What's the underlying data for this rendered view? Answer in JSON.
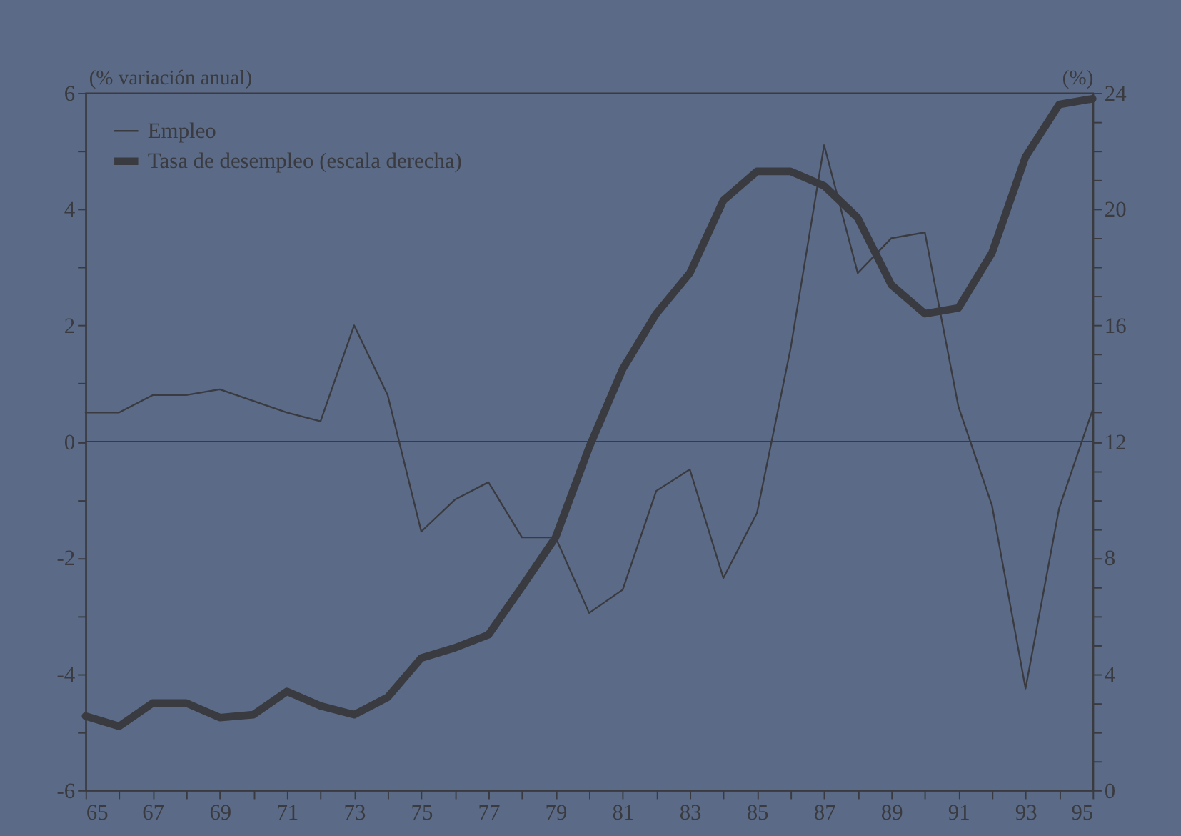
{
  "chart_data": {
    "type": "line",
    "ylabel": "(% variación anual)",
    "y2label": "(%)",
    "x": [
      65,
      66,
      67,
      68,
      69,
      70,
      71,
      72,
      73,
      74,
      75,
      76,
      77,
      78,
      79,
      80,
      81,
      82,
      83,
      84,
      85,
      86,
      87,
      88,
      89,
      90,
      91,
      92,
      93,
      94,
      95
    ],
    "series": [
      {
        "name": "Empleo",
        "color": "#3a3b40",
        "values": [
          0.5,
          0.5,
          0.8,
          0.8,
          0.9,
          0.7,
          0.5,
          0.35,
          2.0,
          0.8,
          -1.55,
          -1.0,
          -0.7,
          -1.65,
          -1.65,
          -2.95,
          -2.55,
          -0.85,
          -0.48,
          -2.35,
          -1.23,
          1.6,
          5.1,
          2.9,
          3.5,
          3.6,
          0.6,
          -1.1,
          -4.25,
          -1.15,
          0.55
        ]
      },
      {
        "name": "Tasa de desempleo (escala derecha)",
        "color": "#3a3b40",
        "axis": "y2",
        "values": [
          2.55,
          2.2,
          3.0,
          3.0,
          2.5,
          2.6,
          3.4,
          2.9,
          2.6,
          3.2,
          4.55,
          4.9,
          5.35,
          7.0,
          8.7,
          11.8,
          14.5,
          16.4,
          17.8,
          20.3,
          21.3,
          21.3,
          20.8,
          19.7,
          17.4,
          16.4,
          16.6,
          18.5,
          21.8,
          23.6,
          23.8
        ]
      }
    ],
    "xlim": [
      65,
      95
    ],
    "xticks": [
      65,
      {
        "value": 66,
        "label": null
      },
      67,
      {
        "value": 68,
        "label": null
      },
      69,
      {
        "value": 70,
        "label": null
      },
      71,
      {
        "value": 72,
        "label": null
      },
      73,
      {
        "value": 74,
        "label": null
      },
      75,
      {
        "value": 76,
        "label": null
      },
      77,
      {
        "value": 78,
        "label": null
      },
      79,
      {
        "value": 80,
        "label": null
      },
      81,
      {
        "value": 82,
        "label": null
      },
      83,
      {
        "value": 84,
        "label": null
      },
      85,
      {
        "value": 86,
        "label": null
      },
      87,
      {
        "value": 88,
        "label": null
      },
      89,
      {
        "value": 90,
        "label": null
      },
      91,
      {
        "value": 92,
        "label": null
      },
      93,
      {
        "value": 94,
        "label": null
      },
      95
    ],
    "ylim": [
      -6,
      6
    ],
    "yticks": [
      -6,
      {
        "value": -5,
        "label": null
      },
      -4,
      {
        "value": -3,
        "label": null
      },
      -2,
      {
        "value": -1,
        "label": null
      },
      0,
      {
        "value": 1,
        "label": null
      },
      2,
      {
        "value": 3,
        "label": null
      },
      4,
      {
        "value": 5,
        "label": null
      },
      6
    ],
    "y2lim": [
      0,
      24
    ],
    "y2ticks": [
      0,
      {
        "value": 1,
        "label": null
      },
      {
        "value": 2,
        "label": null
      },
      {
        "value": 3,
        "label": null
      },
      4,
      {
        "value": 5,
        "label": null
      },
      {
        "value": 6,
        "label": null
      },
      {
        "value": 7,
        "label": null
      },
      8,
      {
        "value": 9,
        "label": null
      },
      {
        "value": 10,
        "label": null
      },
      {
        "value": 11,
        "label": null
      },
      12,
      {
        "value": 13,
        "label": null
      },
      {
        "value": 14,
        "label": null
      },
      {
        "value": 15,
        "label": null
      },
      16,
      {
        "value": 17,
        "label": null
      },
      {
        "value": 18,
        "label": null
      },
      {
        "value": 19,
        "label": null
      },
      20,
      {
        "value": 21,
        "label": null
      },
      {
        "value": 22,
        "label": null
      },
      {
        "value": 23,
        "label": null
      },
      24
    ],
    "ref_lines": [
      {
        "axis": "y",
        "value": 0,
        "label": null
      }
    ],
    "grid": false,
    "legend": "top left"
  }
}
